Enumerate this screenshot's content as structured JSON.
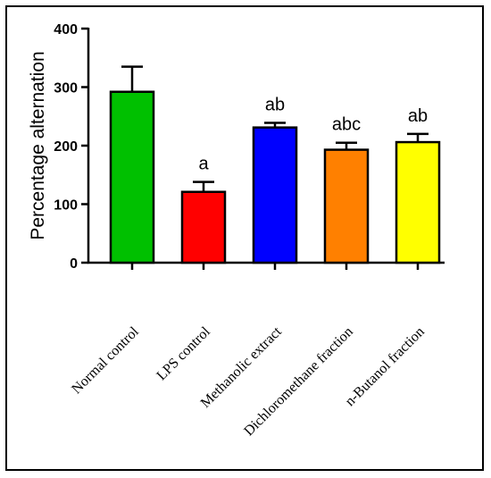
{
  "chart_data": {
    "type": "bar",
    "title": "",
    "xlabel": "",
    "ylabel": "Percentage alternation",
    "ylim": [
      0,
      400
    ],
    "yticks": [
      0,
      100,
      200,
      300,
      400
    ],
    "grid": false,
    "categories": [
      "Normal control",
      "LPS control",
      "Methanolic extract",
      "Dichloromethane fraction",
      "n-Butanol fraction"
    ],
    "values": [
      292,
      121,
      231,
      193,
      206
    ],
    "errors": [
      43,
      17,
      8,
      12,
      14
    ],
    "significance_labels": [
      "",
      "a",
      "ab",
      "abc",
      "ab"
    ],
    "colors": [
      "#00c000",
      "#ff0000",
      "#0000ff",
      "#ff8000",
      "#ffff00"
    ]
  }
}
